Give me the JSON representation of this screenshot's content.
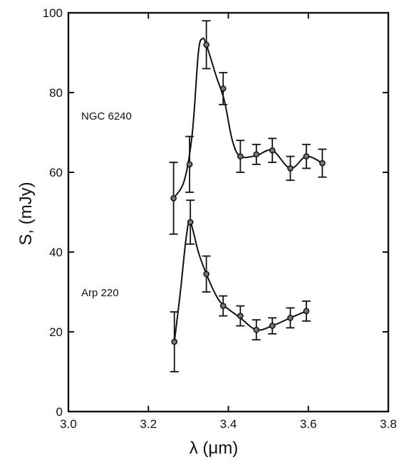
{
  "chart_data": {
    "type": "scatter",
    "xlabel": "λ (μm)",
    "ylabel": "S, (mJy)",
    "xlim": [
      3.0,
      3.8
    ],
    "ylim": [
      0,
      100
    ],
    "x_ticks": [
      3.0,
      3.2,
      3.4,
      3.6,
      3.8
    ],
    "x_tick_labels": [
      "3.0",
      "3.2",
      "3.4",
      "3.6",
      "3.8"
    ],
    "y_ticks": [
      0,
      20,
      40,
      60,
      80,
      100
    ],
    "y_tick_labels": [
      "0",
      "20",
      "40",
      "60",
      "80",
      "100"
    ],
    "grid": false,
    "series": [
      {
        "name": "NGC 6240",
        "x": [
          3.263,
          3.303,
          3.345,
          3.387,
          3.43,
          3.47,
          3.51,
          3.555,
          3.595,
          3.635
        ],
        "y": [
          53.5,
          62,
          92,
          81,
          64,
          64.5,
          65.5,
          61,
          64,
          62.3
        ],
        "yerr": [
          9,
          7,
          6,
          4,
          4,
          2.5,
          3,
          3,
          3,
          3.5
        ],
        "curve": [
          [
            3.263,
            53.5
          ],
          [
            3.29,
            58
          ],
          [
            3.31,
            70
          ],
          [
            3.325,
            90
          ],
          [
            3.335,
            93.5
          ],
          [
            3.345,
            92
          ],
          [
            3.37,
            84
          ],
          [
            3.39,
            78
          ],
          [
            3.41,
            68
          ],
          [
            3.43,
            64
          ],
          [
            3.47,
            64.2
          ],
          [
            3.51,
            65.5
          ],
          [
            3.555,
            61
          ],
          [
            3.595,
            64
          ],
          [
            3.635,
            62.3
          ]
        ]
      },
      {
        "name": "Arp 220",
        "x": [
          3.265,
          3.305,
          3.345,
          3.387,
          3.43,
          3.47,
          3.51,
          3.555,
          3.595
        ],
        "y": [
          17.5,
          47.5,
          34.5,
          26.5,
          24,
          20.5,
          21.5,
          23.5,
          25.2
        ],
        "yerr": [
          7.5,
          5.5,
          4.5,
          2.5,
          2.5,
          2.5,
          2,
          2.5,
          2.5
        ],
        "curve": [
          [
            3.265,
            17.5
          ],
          [
            3.28,
            30
          ],
          [
            3.295,
            44
          ],
          [
            3.305,
            47.5
          ],
          [
            3.325,
            40
          ],
          [
            3.345,
            34.5
          ],
          [
            3.37,
            29
          ],
          [
            3.39,
            26.5
          ],
          [
            3.43,
            23.5
          ],
          [
            3.47,
            20.5
          ],
          [
            3.51,
            21.5
          ],
          [
            3.555,
            23.5
          ],
          [
            3.595,
            25.2
          ]
        ]
      }
    ]
  }
}
